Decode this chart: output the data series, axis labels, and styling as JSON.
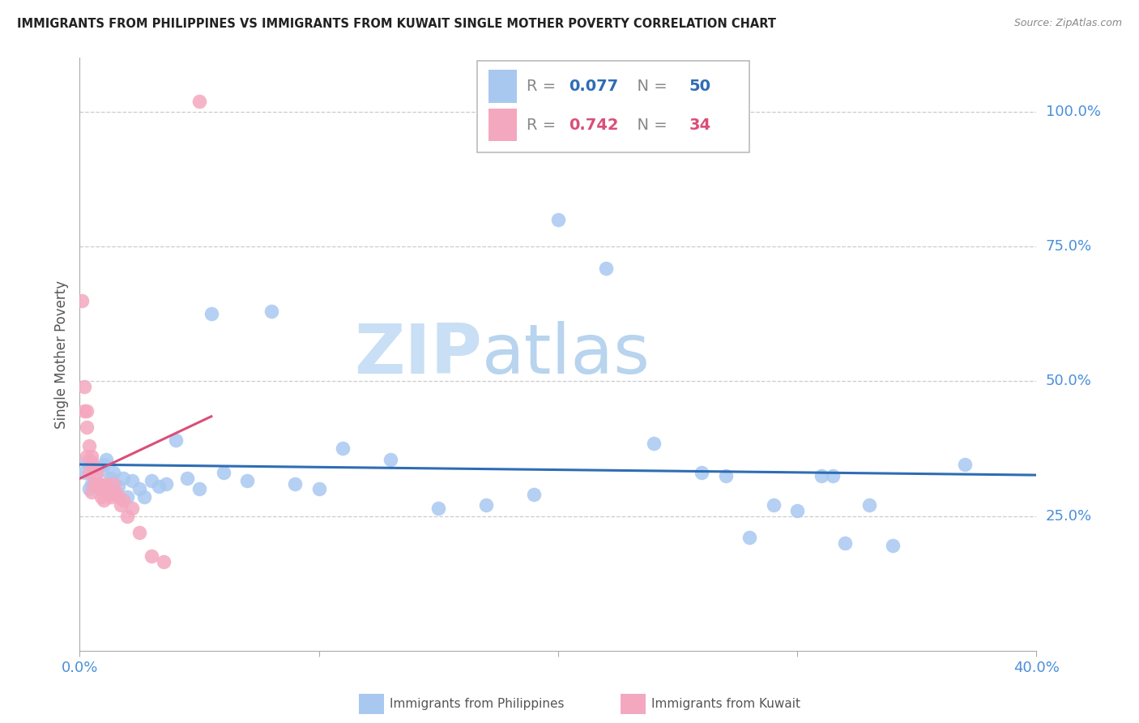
{
  "title": "IMMIGRANTS FROM PHILIPPINES VS IMMIGRANTS FROM KUWAIT SINGLE MOTHER POVERTY CORRELATION CHART",
  "source": "Source: ZipAtlas.com",
  "ylabel": "Single Mother Poverty",
  "xlim": [
    0.0,
    0.4
  ],
  "ylim": [
    0.0,
    1.1
  ],
  "xtick_positions": [
    0.0,
    0.1,
    0.2,
    0.3,
    0.4
  ],
  "xtick_labels": [
    "0.0%",
    "",
    "",
    "",
    "40.0%"
  ],
  "ytick_values": [
    0.25,
    0.5,
    0.75,
    1.0
  ],
  "ytick_labels": [
    "25.0%",
    "50.0%",
    "75.0%",
    "100.0%"
  ],
  "series1_name": "Immigrants from Philippines",
  "series1_color": "#a8c8f0",
  "series1_line_color": "#2e6db4",
  "series1_R": 0.077,
  "series1_N": 50,
  "series2_name": "Immigrants from Kuwait",
  "series2_color": "#f4a8c0",
  "series2_line_color": "#d94f78",
  "series2_R": 0.742,
  "series2_N": 34,
  "watermark_top": "ZIP",
  "watermark_bot": "atlas",
  "watermark_color": "#ddeeff",
  "background_color": "#ffffff",
  "grid_color": "#cccccc",
  "title_color": "#222222",
  "right_axis_color": "#4a90d9",
  "blue_x": [
    0.002,
    0.003,
    0.004,
    0.005,
    0.006,
    0.007,
    0.008,
    0.009,
    0.01,
    0.011,
    0.012,
    0.013,
    0.014,
    0.016,
    0.018,
    0.02,
    0.022,
    0.025,
    0.027,
    0.03,
    0.033,
    0.036,
    0.04,
    0.045,
    0.05,
    0.055,
    0.06,
    0.07,
    0.08,
    0.09,
    0.1,
    0.11,
    0.13,
    0.15,
    0.17,
    0.19,
    0.2,
    0.22,
    0.24,
    0.26,
    0.27,
    0.28,
    0.29,
    0.3,
    0.31,
    0.315,
    0.32,
    0.33,
    0.34,
    0.37
  ],
  "blue_y": [
    0.33,
    0.35,
    0.3,
    0.31,
    0.34,
    0.31,
    0.31,
    0.335,
    0.345,
    0.355,
    0.295,
    0.32,
    0.33,
    0.305,
    0.32,
    0.285,
    0.315,
    0.3,
    0.285,
    0.315,
    0.305,
    0.31,
    0.39,
    0.32,
    0.3,
    0.625,
    0.33,
    0.315,
    0.63,
    0.31,
    0.3,
    0.375,
    0.355,
    0.265,
    0.27,
    0.29,
    0.8,
    0.71,
    0.385,
    0.33,
    0.325,
    0.21,
    0.27,
    0.26,
    0.325,
    0.325,
    0.2,
    0.27,
    0.195,
    0.345
  ],
  "pink_x": [
    0.001,
    0.002,
    0.002,
    0.003,
    0.003,
    0.003,
    0.004,
    0.004,
    0.005,
    0.005,
    0.005,
    0.006,
    0.006,
    0.007,
    0.007,
    0.008,
    0.008,
    0.009,
    0.009,
    0.01,
    0.011,
    0.012,
    0.013,
    0.014,
    0.015,
    0.016,
    0.017,
    0.018,
    0.02,
    0.022,
    0.025,
    0.03,
    0.035,
    0.05
  ],
  "pink_y": [
    0.65,
    0.49,
    0.445,
    0.445,
    0.415,
    0.36,
    0.38,
    0.33,
    0.36,
    0.35,
    0.295,
    0.34,
    0.31,
    0.33,
    0.31,
    0.31,
    0.305,
    0.3,
    0.285,
    0.28,
    0.31,
    0.29,
    0.285,
    0.31,
    0.295,
    0.285,
    0.27,
    0.28,
    0.25,
    0.265,
    0.22,
    0.175,
    0.165,
    1.02
  ]
}
